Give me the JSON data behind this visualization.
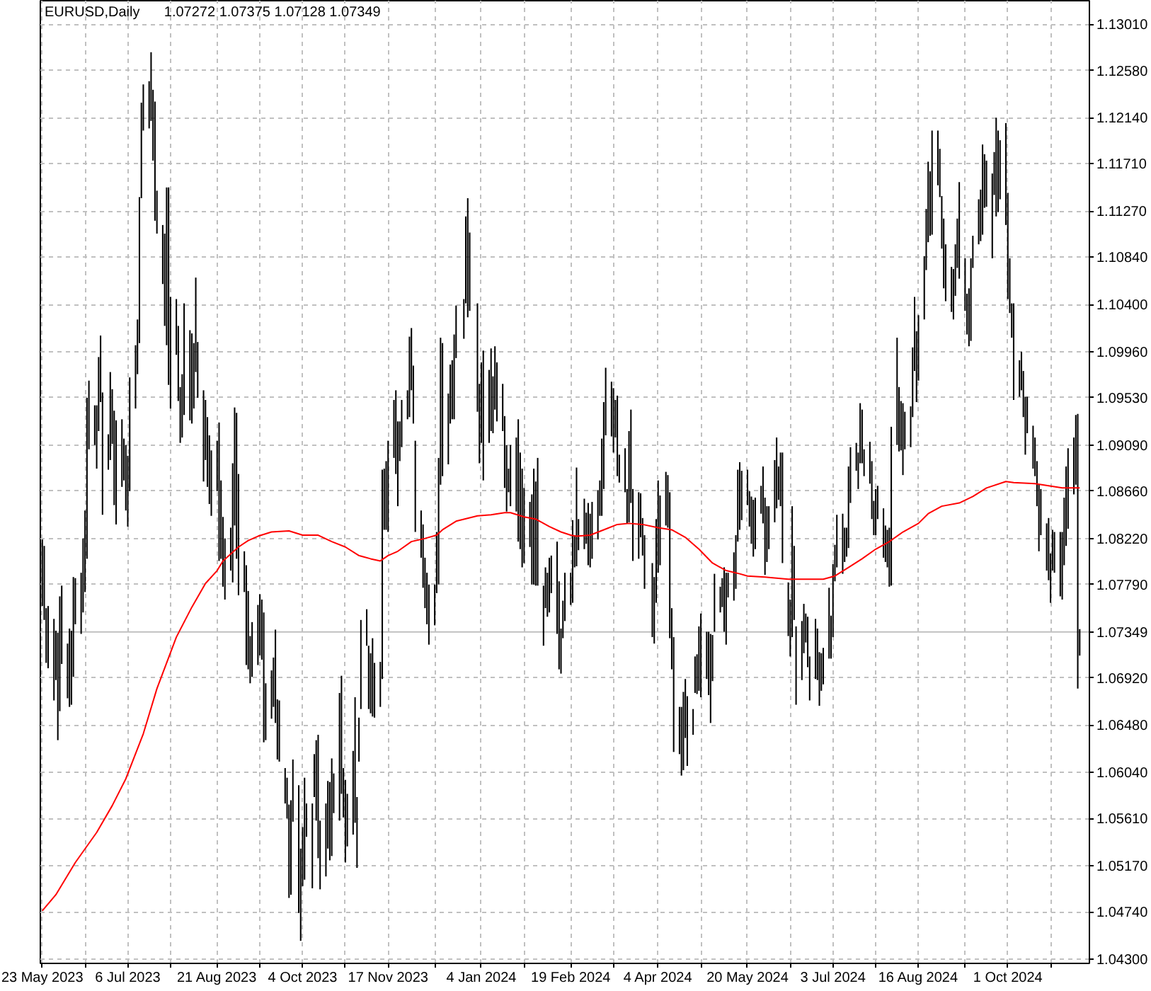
{
  "chart_data": {
    "type": "bar",
    "title": "EURUSD,Daily",
    "subtitle": "1.07272 1.07375 1.07128 1.07349",
    "xlim": [
      "2023-05-22",
      "2024-11-12"
    ],
    "xticks": [
      {
        "value": "2023-05-23",
        "label": "23 May 2023"
      },
      {
        "value": "2023-06-14",
        "label": null
      },
      {
        "value": "2023-07-06",
        "label": "6 Jul 2023"
      },
      {
        "value": "2023-07-28",
        "label": null
      },
      {
        "value": "2023-08-21",
        "label": "21 Aug 2023"
      },
      {
        "value": "2023-09-12",
        "label": null
      },
      {
        "value": "2023-10-04",
        "label": "4 Oct 2023"
      },
      {
        "value": "2023-10-26",
        "label": null
      },
      {
        "value": "2023-11-17",
        "label": "17 Nov 2023"
      },
      {
        "value": "2023-12-11",
        "label": null
      },
      {
        "value": "2024-01-04",
        "label": "4 Jan 2024"
      },
      {
        "value": "2024-01-26",
        "label": null
      },
      {
        "value": "2024-02-19",
        "label": "19 Feb 2024"
      },
      {
        "value": "2024-03-12",
        "label": null
      },
      {
        "value": "2024-04-04",
        "label": "4 Apr 2024"
      },
      {
        "value": "2024-04-26",
        "label": null
      },
      {
        "value": "2024-05-20",
        "label": "20 May 2024"
      },
      {
        "value": "2024-06-11",
        "label": null
      },
      {
        "value": "2024-07-03",
        "label": "3 Jul 2024"
      },
      {
        "value": "2024-07-25",
        "label": null
      },
      {
        "value": "2024-08-16",
        "label": "16 Aug 2024"
      },
      {
        "value": "2024-09-09",
        "label": null
      },
      {
        "value": "2024-10-01",
        "label": "1 Oct 2024"
      },
      {
        "value": "2024-10-23",
        "label": null
      }
    ],
    "ylim": [
      1.0426,
      1.1323
    ],
    "yticks": [
      {
        "value": 1.1301,
        "label": "1.13010"
      },
      {
        "value": 1.1258,
        "label": "1.12580"
      },
      {
        "value": 1.1214,
        "label": "1.12140"
      },
      {
        "value": 1.1171,
        "label": "1.11710"
      },
      {
        "value": 1.1127,
        "label": "1.11270"
      },
      {
        "value": 1.1084,
        "label": "1.10840"
      },
      {
        "value": 1.104,
        "label": "1.10400"
      },
      {
        "value": 1.0996,
        "label": "1.09960"
      },
      {
        "value": 1.0953,
        "label": "1.09530"
      },
      {
        "value": 1.0909,
        "label": "1.09090"
      },
      {
        "value": 1.0866,
        "label": "1.08660"
      },
      {
        "value": 1.0822,
        "label": "1.08220"
      },
      {
        "value": 1.0779,
        "label": "1.07790"
      },
      {
        "value": 1.0692,
        "label": "1.06920"
      },
      {
        "value": 1.0648,
        "label": "1.06480"
      },
      {
        "value": 1.0604,
        "label": "1.06040"
      },
      {
        "value": 1.0561,
        "label": "1.05610"
      },
      {
        "value": 1.0517,
        "label": "1.05170"
      },
      {
        "value": 1.0474,
        "label": "1.04740"
      },
      {
        "value": 1.043,
        "label": "1.04300"
      }
    ],
    "grid": true,
    "ref_lines": [
      {
        "axis": "y",
        "value": 1.07349,
        "label": "1.07349",
        "color": "#c0c0c0",
        "line_style": "solid"
      }
    ],
    "series": [
      {
        "color": "#000000",
        "x": [
          "2023-05-23",
          "2023-05-24",
          "2023-05-25",
          "2023-05-26",
          "2023-05-29",
          "2023-05-30",
          "2023-05-31",
          "2023-06-01",
          "2023-06-02",
          "2023-06-05",
          "2023-06-06",
          "2023-06-07",
          "2023-06-08",
          "2023-06-09",
          "2023-06-12",
          "2023-06-13",
          "2023-06-14",
          "2023-06-15",
          "2023-06-16",
          "2023-06-19",
          "2023-06-20",
          "2023-06-21",
          "2023-06-22",
          "2023-06-23",
          "2023-06-26",
          "2023-06-27",
          "2023-06-28",
          "2023-06-29",
          "2023-06-30",
          "2023-07-03",
          "2023-07-04",
          "2023-07-05",
          "2023-07-06",
          "2023-07-07",
          "2023-07-10",
          "2023-07-11",
          "2023-07-12",
          "2023-07-13",
          "2023-07-14",
          "2023-07-17",
          "2023-07-18",
          "2023-07-19",
          "2023-07-20",
          "2023-07-21",
          "2023-07-24",
          "2023-07-25",
          "2023-07-26",
          "2023-07-27",
          "2023-07-28",
          "2023-07-31",
          "2023-08-01",
          "2023-08-02",
          "2023-08-03",
          "2023-08-04",
          "2023-08-07",
          "2023-08-08",
          "2023-08-09",
          "2023-08-10",
          "2023-08-11",
          "2023-08-14",
          "2023-08-15",
          "2023-08-16",
          "2023-08-17",
          "2023-08-18",
          "2023-08-21",
          "2023-08-22",
          "2023-08-23",
          "2023-08-24",
          "2023-08-25",
          "2023-08-28",
          "2023-08-29",
          "2023-08-30",
          "2023-08-31",
          "2023-09-01",
          "2023-09-04",
          "2023-09-05",
          "2023-09-06",
          "2023-09-07",
          "2023-09-08",
          "2023-09-11",
          "2023-09-12",
          "2023-09-13",
          "2023-09-14",
          "2023-09-15",
          "2023-09-18",
          "2023-09-19",
          "2023-09-20",
          "2023-09-21",
          "2023-09-22",
          "2023-09-25",
          "2023-09-26",
          "2023-09-27",
          "2023-09-28",
          "2023-09-29",
          "2023-10-02",
          "2023-10-03",
          "2023-10-04",
          "2023-10-05",
          "2023-10-06",
          "2023-10-09",
          "2023-10-10",
          "2023-10-11",
          "2023-10-12",
          "2023-10-13",
          "2023-10-16",
          "2023-10-17",
          "2023-10-18",
          "2023-10-19",
          "2023-10-20",
          "2023-10-23",
          "2023-10-24",
          "2023-10-25",
          "2023-10-26",
          "2023-10-27",
          "2023-10-30",
          "2023-10-31",
          "2023-11-01",
          "2023-11-02",
          "2023-11-03",
          "2023-11-06",
          "2023-11-07",
          "2023-11-08",
          "2023-11-09",
          "2023-11-10",
          "2023-11-13",
          "2023-11-14",
          "2023-11-15",
          "2023-11-16",
          "2023-11-17",
          "2023-11-20",
          "2023-11-21",
          "2023-11-22",
          "2023-11-23",
          "2023-11-24",
          "2023-11-27",
          "2023-11-28",
          "2023-11-29",
          "2023-11-30",
          "2023-12-01",
          "2023-12-04",
          "2023-12-05",
          "2023-12-06",
          "2023-12-07",
          "2023-12-08",
          "2023-12-11",
          "2023-12-12",
          "2023-12-13",
          "2023-12-14",
          "2023-12-15",
          "2023-12-18",
          "2023-12-19",
          "2023-12-20",
          "2023-12-21",
          "2023-12-22",
          "2023-12-26",
          "2023-12-27",
          "2023-12-28",
          "2023-12-29",
          "2024-01-02",
          "2024-01-03",
          "2024-01-04",
          "2024-01-05",
          "2024-01-08",
          "2024-01-09",
          "2024-01-10",
          "2024-01-11",
          "2024-01-12",
          "2024-01-15",
          "2024-01-16",
          "2024-01-17",
          "2024-01-18",
          "2024-01-19",
          "2024-01-22",
          "2024-01-23",
          "2024-01-24",
          "2024-01-25",
          "2024-01-26",
          "2024-01-29",
          "2024-01-30",
          "2024-01-31",
          "2024-02-01",
          "2024-02-02",
          "2024-02-05",
          "2024-02-06",
          "2024-02-07",
          "2024-02-08",
          "2024-02-09",
          "2024-02-12",
          "2024-02-13",
          "2024-02-14",
          "2024-02-15",
          "2024-02-16",
          "2024-02-19",
          "2024-02-20",
          "2024-02-21",
          "2024-02-22",
          "2024-02-23",
          "2024-02-26",
          "2024-02-27",
          "2024-02-28",
          "2024-02-29",
          "2024-03-01",
          "2024-03-04",
          "2024-03-05",
          "2024-03-06",
          "2024-03-07",
          "2024-03-08",
          "2024-03-11",
          "2024-03-12",
          "2024-03-13",
          "2024-03-14",
          "2024-03-15",
          "2024-03-18",
          "2024-03-19",
          "2024-03-20",
          "2024-03-21",
          "2024-03-22",
          "2024-03-25",
          "2024-03-26",
          "2024-03-27",
          "2024-03-28",
          "2024-04-01",
          "2024-04-02",
          "2024-04-03",
          "2024-04-04",
          "2024-04-05",
          "2024-04-08",
          "2024-04-09",
          "2024-04-10",
          "2024-04-11",
          "2024-04-12",
          "2024-04-15",
          "2024-04-16",
          "2024-04-17",
          "2024-04-18",
          "2024-04-19",
          "2024-04-22",
          "2024-04-23",
          "2024-04-24",
          "2024-04-25",
          "2024-04-26",
          "2024-04-29",
          "2024-04-30",
          "2024-05-01",
          "2024-05-02",
          "2024-05-03",
          "2024-05-06",
          "2024-05-07",
          "2024-05-08",
          "2024-05-09",
          "2024-05-10",
          "2024-05-13",
          "2024-05-14",
          "2024-05-15",
          "2024-05-16",
          "2024-05-17",
          "2024-05-20",
          "2024-05-21",
          "2024-05-22",
          "2024-05-23",
          "2024-05-24",
          "2024-05-27",
          "2024-05-28",
          "2024-05-29",
          "2024-05-30",
          "2024-05-31",
          "2024-06-03",
          "2024-06-04",
          "2024-06-05",
          "2024-06-06",
          "2024-06-07",
          "2024-06-10",
          "2024-06-11",
          "2024-06-12",
          "2024-06-13",
          "2024-06-14",
          "2024-06-17",
          "2024-06-18",
          "2024-06-19",
          "2024-06-20",
          "2024-06-21",
          "2024-06-24",
          "2024-06-25",
          "2024-06-26",
          "2024-06-27",
          "2024-06-28",
          "2024-07-01",
          "2024-07-02",
          "2024-07-03",
          "2024-07-04",
          "2024-07-05",
          "2024-07-08",
          "2024-07-09",
          "2024-07-10",
          "2024-07-11",
          "2024-07-12",
          "2024-07-15",
          "2024-07-16",
          "2024-07-17",
          "2024-07-18",
          "2024-07-19",
          "2024-07-22",
          "2024-07-23",
          "2024-07-24",
          "2024-07-25",
          "2024-07-26",
          "2024-07-29",
          "2024-07-30",
          "2024-07-31",
          "2024-08-01",
          "2024-08-02",
          "2024-08-05",
          "2024-08-06",
          "2024-08-07",
          "2024-08-08",
          "2024-08-09",
          "2024-08-12",
          "2024-08-13",
          "2024-08-14",
          "2024-08-15",
          "2024-08-16",
          "2024-08-19",
          "2024-08-20",
          "2024-08-21",
          "2024-08-22",
          "2024-08-23",
          "2024-08-26",
          "2024-08-27",
          "2024-08-28",
          "2024-08-29",
          "2024-08-30",
          "2024-09-02",
          "2024-09-03",
          "2024-09-04",
          "2024-09-05",
          "2024-09-06",
          "2024-09-09",
          "2024-09-10",
          "2024-09-11",
          "2024-09-12",
          "2024-09-13",
          "2024-09-16",
          "2024-09-17",
          "2024-09-18",
          "2024-09-19",
          "2024-09-20",
          "2024-09-23",
          "2024-09-24",
          "2024-09-25",
          "2024-09-26",
          "2024-09-27",
          "2024-09-30",
          "2024-10-01",
          "2024-10-02",
          "2024-10-03",
          "2024-10-04",
          "2024-10-07",
          "2024-10-08",
          "2024-10-09",
          "2024-10-10",
          "2024-10-11",
          "2024-10-14",
          "2024-10-15",
          "2024-10-16",
          "2024-10-17",
          "2024-10-18",
          "2024-10-21",
          "2024-10-22",
          "2024-10-23",
          "2024-10-24",
          "2024-10-25",
          "2024-10-28",
          "2024-10-29",
          "2024-10-30",
          "2024-10-31",
          "2024-11-01",
          "2024-11-04",
          "2024-11-05",
          "2024-11-06",
          "2024-11-07"
        ],
        "base": [
          1.0759,
          1.0746,
          1.0706,
          1.0701,
          1.0671,
          1.069,
          1.0634,
          1.0661,
          1.0705,
          1.0673,
          1.0665,
          1.0667,
          1.0693,
          1.0742,
          1.0733,
          1.0753,
          1.0772,
          1.0803,
          1.0905,
          1.0909,
          1.0887,
          1.0922,
          1.0949,
          1.0844,
          1.0886,
          1.0895,
          1.091,
          1.0853,
          1.0835,
          1.087,
          1.0876,
          1.0848,
          1.0833,
          1.0866,
          1.0943,
          1.0975,
          1.1004,
          1.1139,
          1.1202,
          1.1204,
          1.1211,
          1.1174,
          1.1118,
          1.1106,
          1.1059,
          1.102,
          1.1002,
          1.0965,
          1.0943,
          1.0993,
          1.095,
          1.0911,
          1.0916,
          1.0937,
          1.0932,
          1.0929,
          1.0943,
          1.0977,
          1.0953,
          1.0875,
          1.0895,
          1.087,
          1.0854,
          1.0843,
          1.0866,
          1.0801,
          1.0803,
          1.0777,
          1.0765,
          1.0792,
          1.0781,
          1.0834,
          1.0803,
          1.0769,
          1.0772,
          1.0704,
          1.07,
          1.0687,
          1.0693,
          1.0704,
          1.0713,
          1.0709,
          1.0632,
          1.0634,
          1.0654,
          1.0665,
          1.065,
          1.0616,
          1.0614,
          1.0575,
          1.0561,
          1.0487,
          1.049,
          1.0558,
          1.0473,
          1.0447,
          1.0498,
          1.0504,
          1.0544,
          1.0496,
          1.0581,
          1.0559,
          1.0524,
          1.0495,
          1.0507,
          1.0533,
          1.0522,
          1.0526,
          1.0566,
          1.0559,
          1.0584,
          1.0562,
          1.052,
          1.0535,
          1.0546,
          1.0557,
          1.0515,
          1.0614,
          1.0663,
          1.0722,
          1.0663,
          1.0659,
          1.0656,
          1.0655,
          1.0665,
          1.0691,
          1.083,
          1.083,
          1.0828,
          1.0897,
          1.0882,
          1.0852,
          1.0894,
          1.0907,
          1.0933,
          1.0935,
          1.096,
          1.0929,
          1.0828,
          1.0804,
          1.0776,
          1.0757,
          1.0742,
          1.0723,
          1.0741,
          1.0771,
          1.0779,
          1.0872,
          1.088,
          1.0891,
          1.0929,
          1.0933,
          1.0933,
          1.099,
          1.1008,
          1.1041,
          1.1028,
          1.1034,
          1.094,
          1.0892,
          1.0911,
          1.0876,
          1.0911,
          1.0922,
          1.092,
          1.0942,
          1.0931,
          1.0922,
          1.0869,
          1.0847,
          1.0865,
          1.0852,
          1.0847,
          1.0819,
          1.0812,
          1.0795,
          1.0799,
          1.0814,
          1.0779,
          1.0779,
          1.0778,
          1.0778,
          1.0722,
          1.0757,
          1.0749,
          1.0753,
          1.0771,
          1.0733,
          1.07,
          1.0696,
          1.0729,
          1.0745,
          1.076,
          1.0762,
          1.0795,
          1.0796,
          1.0811,
          1.0812,
          1.0817,
          1.0797,
          1.0795,
          1.0803,
          1.0821,
          1.0843,
          1.0843,
          1.0868,
          1.0918,
          1.0917,
          1.0902,
          1.0916,
          1.088,
          1.0874,
          1.0865,
          1.0836,
          1.0837,
          1.0855,
          1.0801,
          1.0803,
          1.0823,
          1.0806,
          1.0775,
          1.073,
          1.0724,
          1.0762,
          1.079,
          1.0797,
          1.0834,
          1.0832,
          1.0729,
          1.07,
          1.0623,
          1.0621,
          1.0601,
          1.0606,
          1.0636,
          1.061,
          1.0639,
          1.0678,
          1.0677,
          1.068,
          1.0674,
          1.0691,
          1.0676,
          1.065,
          1.0689,
          1.0735,
          1.0753,
          1.0758,
          1.0735,
          1.0723,
          1.0767,
          1.0764,
          1.0775,
          1.0819,
          1.083,
          1.0839,
          1.0853,
          1.0833,
          1.0817,
          1.0805,
          1.0812,
          1.0845,
          1.0836,
          1.0788,
          1.08,
          1.0812,
          1.0837,
          1.085,
          1.0858,
          1.0852,
          1.0799,
          1.0731,
          1.0712,
          1.073,
          1.0746,
          1.0667,
          1.069,
          1.0715,
          1.0725,
          1.0702,
          1.0671,
          1.0691,
          1.069,
          1.0666,
          1.068,
          1.0686,
          1.071,
          1.071,
          1.073,
          1.0782,
          1.0795,
          1.0789,
          1.08,
          1.0805,
          1.0813,
          1.0855,
          1.0885,
          1.0868,
          1.0892,
          1.0892,
          1.088,
          1.0873,
          1.084,
          1.0825,
          1.0825,
          1.084,
          1.0804,
          1.08,
          1.0795,
          1.0777,
          1.0778,
          1.0909,
          1.0903,
          1.0904,
          1.0881,
          1.0905,
          1.0907,
          1.0935,
          1.0978,
          1.0949,
          1.0969,
          1.1026,
          1.1072,
          1.1098,
          1.1104,
          1.1105,
          1.1151,
          1.114,
          1.1092,
          1.1055,
          1.1043,
          1.1033,
          1.1026,
          1.1048,
          1.1074,
          1.1064,
          1.1034,
          1.1012,
          1.1001,
          1.1006,
          1.1074,
          1.1096,
          1.1099,
          1.1105,
          1.113,
          1.1131,
          1.1083,
          1.1142,
          1.1122,
          1.1126,
          1.1138,
          1.1114,
          1.1045,
          1.1032,
          1.1009,
          1.0951,
          1.0954,
          1.096,
          1.0935,
          1.09,
          1.092,
          1.0887,
          1.088,
          1.0852,
          1.081,
          1.0825,
          1.0792,
          1.0783,
          1.0762,
          1.0792,
          1.079,
          1.0768,
          1.0765,
          1.0797,
          1.0815,
          1.0831,
          1.0863,
          1.0872,
          1.0682,
          1.07128
        ],
        "values": [
          0.0062,
          0.0069,
          0.0051,
          0.0058,
          0.0076,
          0.0046,
          0.01,
          0.0107,
          0.0073,
          0.0051,
          0.0073,
          0.0069,
          0.0093,
          0.0043,
          0.0057,
          0.0069,
          0.0076,
          0.015,
          0.0064,
          0.0037,
          0.0059,
          0.0069,
          0.0062,
          0.0114,
          0.0033,
          0.0082,
          0.0051,
          0.0088,
          0.0097,
          0.0063,
          0.0039,
          0.0061,
          0.0066,
          0.0106,
          0.0059,
          0.0051,
          0.0136,
          0.0089,
          0.0043,
          0.0044,
          0.0064,
          0.0066,
          0.0111,
          0.004,
          0.0055,
          0.0086,
          0.0147,
          0.0184,
          0.0104,
          0.0052,
          0.007,
          0.0052,
          0.0059,
          0.0104,
          0.0084,
          0.0084,
          0.0061,
          0.0088,
          0.0052,
          0.0085,
          0.0056,
          0.0065,
          0.0064,
          0.0061,
          0.0047,
          0.0129,
          0.0073,
          0.0065,
          0.0057,
          0.004,
          0.0111,
          0.011,
          0.0136,
          0.0113,
          0.0038,
          0.0093,
          0.0073,
          0.0044,
          0.0051,
          0.0056,
          0.0057,
          0.0056,
          0.0121,
          0.0053,
          0.0045,
          0.0046,
          0.0087,
          0.0056,
          0.0057,
          0.0033,
          0.0038,
          0.0087,
          0.0088,
          0.0058,
          0.0119,
          0.0086,
          0.0055,
          0.0095,
          0.0031,
          0.0079,
          0.004,
          0.0075,
          0.0115,
          0.0064,
          0.0068,
          0.0063,
          0.0073,
          0.0091,
          0.0037,
          0.0119,
          0.011,
          0.0046,
          0.0077,
          0.0049,
          0.0078,
          0.0117,
          0.0066,
          0.0041,
          0.0083,
          0.0034,
          0.0059,
          0.0056,
          0.0073,
          0.0051,
          0.0042,
          0.0195,
          0.0057,
          0.0064,
          0.0085,
          0.0054,
          0.0078,
          0.0079,
          0.0037,
          0.0044,
          0.0027,
          0.0075,
          0.0058,
          0.0054,
          0.0085,
          0.0044,
          0.0059,
          0.0047,
          0.0048,
          0.0056,
          0.0038,
          0.0057,
          0.0118,
          0.0137,
          0.0124,
          0.0066,
          0.0055,
          0.0055,
          0.0079,
          0.0049,
          0.0037,
          0.0081,
          0.0111,
          0.0073,
          0.0101,
          0.0074,
          0.0075,
          0.0121,
          0.0068,
          0.0077,
          0.0053,
          0.0059,
          0.0055,
          0.0044,
          0.0067,
          0.0062,
          0.0022,
          0.0057,
          0.0069,
          0.0114,
          0.009,
          0.0092,
          0.007,
          0.0042,
          0.0084,
          0.0108,
          0.0097,
          0.0119,
          0.0056,
          0.0038,
          0.0041,
          0.0051,
          0.0035,
          0.0086,
          0.0082,
          0.0042,
          0.0035,
          0.0045,
          0.003,
          0.0077,
          0.003,
          0.0092,
          0.0029,
          0.0047,
          0.0029,
          0.0058,
          0.005,
          0.0053,
          0.0046,
          0.0033,
          0.0072,
          0.0081,
          0.0063,
          0.0051,
          0.006,
          0.0035,
          0.0075,
          0.0026,
          0.0041,
          0.0032,
          0.0085,
          0.0087,
          0.0067,
          0.0062,
          0.0041,
          0.0035,
          0.005,
          0.0069,
          0.0062,
          0.0078,
          0.0086,
          0.0065,
          0.005,
          0.0049,
          0.0136,
          0.0057,
          0.0107,
          0.0044,
          0.0064,
          0.0073,
          0.0055,
          0.0065,
          0.0024,
          0.0034,
          0.0037,
          0.006,
          0.0078,
          0.0044,
          0.0059,
          0.0083,
          0.0043,
          0.0054,
          0.0024,
          0.0027,
          0.006,
          0.0067,
          0.0023,
          0.0045,
          0.005,
          0.0067,
          0.0063,
          0.0046,
          0.0033,
          0.0033,
          0.0044,
          0.0053,
          0.0048,
          0.0026,
          0.0053,
          0.0072,
          0.0052,
          0.004,
          0.0058,
          0.0066,
          0.0031,
          0.005,
          0.0103,
          0.005,
          0.0053,
          0.0122,
          0.0069,
          0.0073,
          0.0055,
          0.0046,
          0.0027,
          0.0047,
          0.0041,
          0.0056,
          0.0048,
          0.005,
          0.0035,
          0.0034,
          0.0066,
          0.004,
          0.0068,
          0.0034,
          0.0049,
          0.0056,
          0.0032,
          0.0027,
          0.0076,
          0.0052,
          0.0026,
          0.0034,
          0.0056,
          0.005,
          0.0025,
          0.0039,
          0.0054,
          0.0032,
          0.0043,
          0.0031,
          0.0046,
          0.0034,
          0.0035,
          0.0055,
          0.0148,
          0.01,
          0.006,
          0.0046,
          0.0067,
          0.0035,
          0.0038,
          0.0065,
          0.0069,
          0.0066,
          0.0061,
          0.0059,
          0.0057,
          0.0075,
          0.006,
          0.0097,
          0.0051,
          0.0045,
          0.0049,
          0.0065,
          0.0053,
          0.0042,
          0.0047,
          0.0048,
          0.0046,
          0.009,
          0.0049,
          0.0038,
          0.0054,
          0.0077,
          0.003,
          0.0042,
          0.0048,
          0.0084,
          0.005,
          0.0043,
          0.0079,
          0.004,
          0.0092,
          0.0076,
          0.0055,
          0.0095,
          0.0099,
          0.0051,
          0.0032,
          0.009,
          0.0034,
          0.0036,
          0.0043,
          0.0054,
          0.0034,
          0.004,
          0.0036,
          0.0042,
          0.0062,
          0.0043,
          0.0044,
          0.0058,
          0.0046,
          0.0038,
          0.0038,
          0.006,
          0.0063,
          0.0063,
          0.0074,
          0.0075,
          0.0053,
          0.0065,
          0.0256,
          0.00247
        ]
      },
      {
        "type": "line",
        "color": "#ff0000",
        "x": [
          "2023-05-23",
          "2023-05-30",
          "2023-06-09",
          "2023-06-20",
          "2023-06-28",
          "2023-07-05",
          "2023-07-14",
          "2023-07-21",
          "2023-07-31",
          "2023-08-08",
          "2023-08-15",
          "2023-08-21",
          "2023-08-24",
          "2023-09-01",
          "2023-09-06",
          "2023-09-11",
          "2023-09-18",
          "2023-09-27",
          "2023-10-04",
          "2023-10-12",
          "2023-10-19",
          "2023-10-26",
          "2023-11-02",
          "2023-11-08",
          "2023-11-13",
          "2023-11-17",
          "2023-11-22",
          "2023-11-29",
          "2023-12-06",
          "2023-12-12",
          "2023-12-15",
          "2023-12-22",
          "2024-01-02",
          "2024-01-09",
          "2024-01-16",
          "2024-01-19",
          "2024-01-26",
          "2024-02-01",
          "2024-02-08",
          "2024-02-14",
          "2024-02-19",
          "2024-02-22",
          "2024-02-29",
          "2024-03-07",
          "2024-03-14",
          "2024-03-20",
          "2024-03-27",
          "2024-04-04",
          "2024-04-11",
          "2024-04-18",
          "2024-04-25",
          "2024-05-02",
          "2024-05-09",
          "2024-05-16",
          "2024-05-20",
          "2024-05-29",
          "2024-06-10",
          "2024-06-20",
          "2024-06-28",
          "2024-07-04",
          "2024-07-11",
          "2024-07-18",
          "2024-07-25",
          "2024-08-01",
          "2024-08-08",
          "2024-08-16",
          "2024-08-21",
          "2024-08-28",
          "2024-09-06",
          "2024-09-13",
          "2024-09-20",
          "2024-09-30",
          "2024-10-04",
          "2024-10-15",
          "2024-10-22",
          "2024-10-29",
          "2024-11-07"
        ],
        "values": [
          1.0475,
          1.049,
          1.052,
          1.0548,
          1.0573,
          1.0598,
          1.064,
          1.0682,
          1.073,
          1.0758,
          1.078,
          1.0792,
          1.0801,
          1.0814,
          1.082,
          1.0824,
          1.0828,
          1.0829,
          1.0825,
          1.0825,
          1.0819,
          1.0814,
          1.0806,
          1.0803,
          1.0801,
          1.0806,
          1.081,
          1.0819,
          1.0822,
          1.0825,
          1.083,
          1.0838,
          1.0843,
          1.0844,
          1.0846,
          1.0846,
          1.0842,
          1.084,
          1.0833,
          1.0828,
          1.0825,
          1.0824,
          1.0825,
          1.083,
          1.0835,
          1.0836,
          1.0835,
          1.0832,
          1.083,
          1.0823,
          1.0812,
          1.0799,
          1.0792,
          1.0789,
          1.0787,
          1.0786,
          1.0784,
          1.0784,
          1.0784,
          1.0787,
          1.0795,
          1.0803,
          1.0812,
          1.0819,
          1.0828,
          1.0836,
          1.0845,
          1.0852,
          1.0855,
          1.0861,
          1.0869,
          1.0875,
          1.0874,
          1.0873,
          1.0871,
          1.0869,
          1.0869
        ]
      }
    ]
  }
}
